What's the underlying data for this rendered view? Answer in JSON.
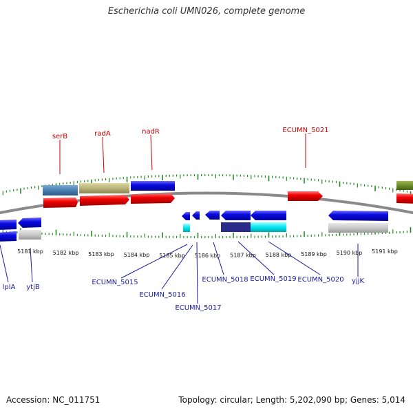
{
  "title": "Escherichia coli UMN026, complete genome",
  "footer": {
    "accession": "Accession: NC_011751",
    "topology": "Topology: circular; Length: 5,202,090 bp; Genes: 5,014"
  },
  "colors": {
    "backbone": "#8a8a8a",
    "tick": "#1e8a1e",
    "forward_cds": "#ee0000",
    "reverse_cds": "#0a0ae0",
    "label_forward": "#c00000",
    "label_reverse": "#1a1a9c",
    "gene_steel": "#4a7fb0",
    "gene_khaki": "#b8b27a",
    "gene_olive": "#6b8c2a",
    "gene_gray": "#c8c8c8",
    "gene_cyan": "#00e5ee",
    "gene_navy": "#2a2a8a"
  },
  "axis": {
    "unit": "kbp",
    "ticks": [
      5181,
      5182,
      5183,
      5184,
      5185,
      5186,
      5187,
      5188,
      5189,
      5190,
      5191
    ],
    "tick_labels": [
      "5181 kbp",
      "5182 kbp",
      "5183 kbp",
      "5184 kbp",
      "5185 kbp",
      "5186 kbp",
      "5187 kbp",
      "5188 kbp",
      "5189 kbp",
      "5190 kbp",
      "5191 kbp"
    ]
  },
  "forward_labels": [
    "serB",
    "radA",
    "nadR",
    "ECUMN_5021"
  ],
  "reverse_labels": [
    "lplA",
    "ytjB",
    "ECUMN_5015",
    "ECUMN_5016",
    "ECUMN_5017",
    "ECUMN_5018",
    "ECUMN_5019",
    "ECUMN_5020",
    "yjjK"
  ]
}
